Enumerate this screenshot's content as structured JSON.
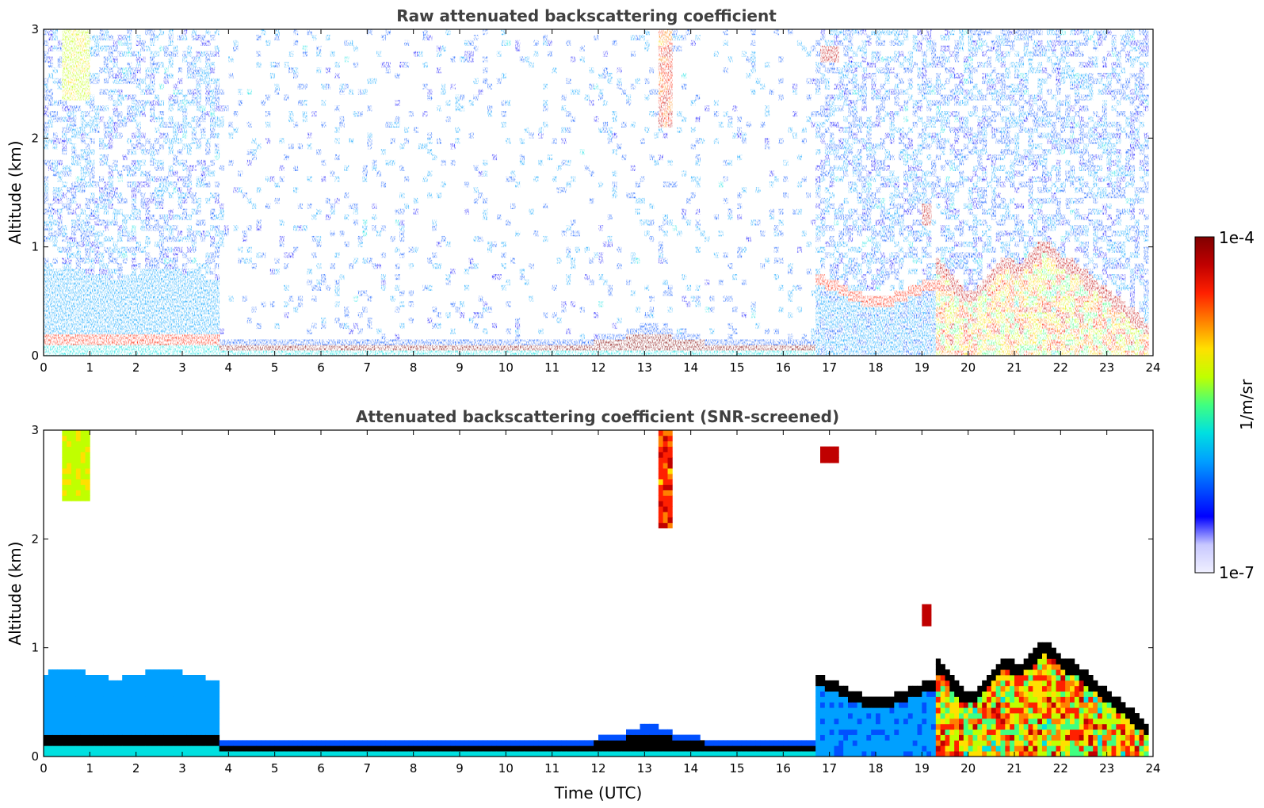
{
  "chart_data": [
    {
      "type": "heatmap",
      "id": "raw",
      "title": "Raw attenuated backscattering coefficient",
      "xlabel": "",
      "ylabel": "Altitude (km)",
      "xlim": [
        0,
        24
      ],
      "ylim": [
        0,
        3
      ],
      "xticks": [
        "0",
        "1",
        "2",
        "3",
        "4",
        "5",
        "6",
        "7",
        "8",
        "9",
        "10",
        "11",
        "12",
        "13",
        "14",
        "15",
        "16",
        "17",
        "18",
        "19",
        "20",
        "21",
        "22",
        "23",
        "24"
      ],
      "yticks": [
        "0",
        "1",
        "2",
        "3"
      ],
      "features": [
        {
          "name": "noisy-low-layer",
          "t0": 0,
          "t1": 3.85,
          "h_top": 0.75,
          "level": 0.32
        },
        {
          "name": "surface-layer-dense",
          "t0": 3.9,
          "t1": 16.7,
          "h_base": 0.05,
          "h_top": 0.18,
          "level": 0.97
        },
        {
          "name": "evening-mixed-layer",
          "t0": 16.7,
          "t1": 19.3,
          "h_top": 0.65,
          "level": 0.3
        },
        {
          "name": "convective-plumes",
          "t0": 19.3,
          "t1": 23.8,
          "h_top": 1.0,
          "level": 0.8
        },
        {
          "name": "high-cloud-early",
          "t0": 0.4,
          "t1": 1.0,
          "h_base": 2.35,
          "h_top": 3.0,
          "level": 0.6
        },
        {
          "name": "midday-cloud",
          "t0": 13.2,
          "t1": 13.6,
          "h_base": 2.1,
          "h_top": 3.0,
          "level": 0.85
        }
      ]
    },
    {
      "type": "heatmap",
      "id": "screened",
      "title": "Attenuated backscattering coefficient (SNR-screened)",
      "xlabel": "Time (UTC)",
      "ylabel": "Altitude (km)",
      "xlim": [
        0,
        24
      ],
      "ylim": [
        0,
        3
      ],
      "xticks": [
        "0",
        "1",
        "2",
        "3",
        "4",
        "5",
        "6",
        "7",
        "8",
        "9",
        "10",
        "11",
        "12",
        "13",
        "14",
        "15",
        "16",
        "17",
        "18",
        "19",
        "20",
        "21",
        "22",
        "23",
        "24"
      ],
      "yticks": [
        "0",
        "1",
        "2",
        "3"
      ]
    }
  ],
  "colorbar": {
    "max_label": "1e-4",
    "min_label": "1e-7",
    "unit_label": "1/m/sr",
    "stops": [
      "#f0f0ff",
      "#c8c8ff",
      "#0000ff",
      "#0050ff",
      "#00a0ff",
      "#00e0e0",
      "#40ff80",
      "#c0ff00",
      "#ffe000",
      "#ff8000",
      "#ff2000",
      "#c00000",
      "#800000"
    ]
  }
}
